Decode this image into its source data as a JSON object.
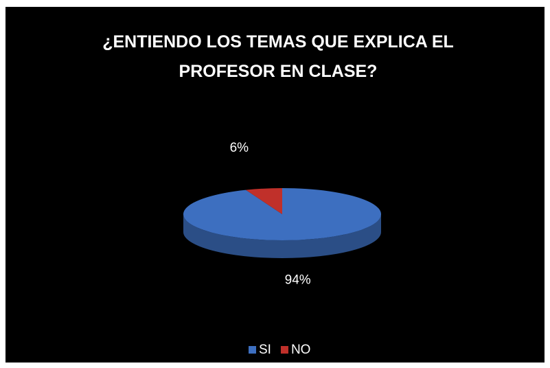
{
  "chart_data": {
    "type": "pie",
    "title": "¿ENTIENDO LOS TEMAS QUE EXPLICA EL PROFESOR EN CLASE?",
    "categories": [
      "SI",
      "NO"
    ],
    "values": [
      94,
      6
    ],
    "value_labels": [
      "94%",
      "6%"
    ],
    "colors": [
      "#3d6fc0",
      "#c0302a"
    ],
    "legend": "bottom"
  }
}
